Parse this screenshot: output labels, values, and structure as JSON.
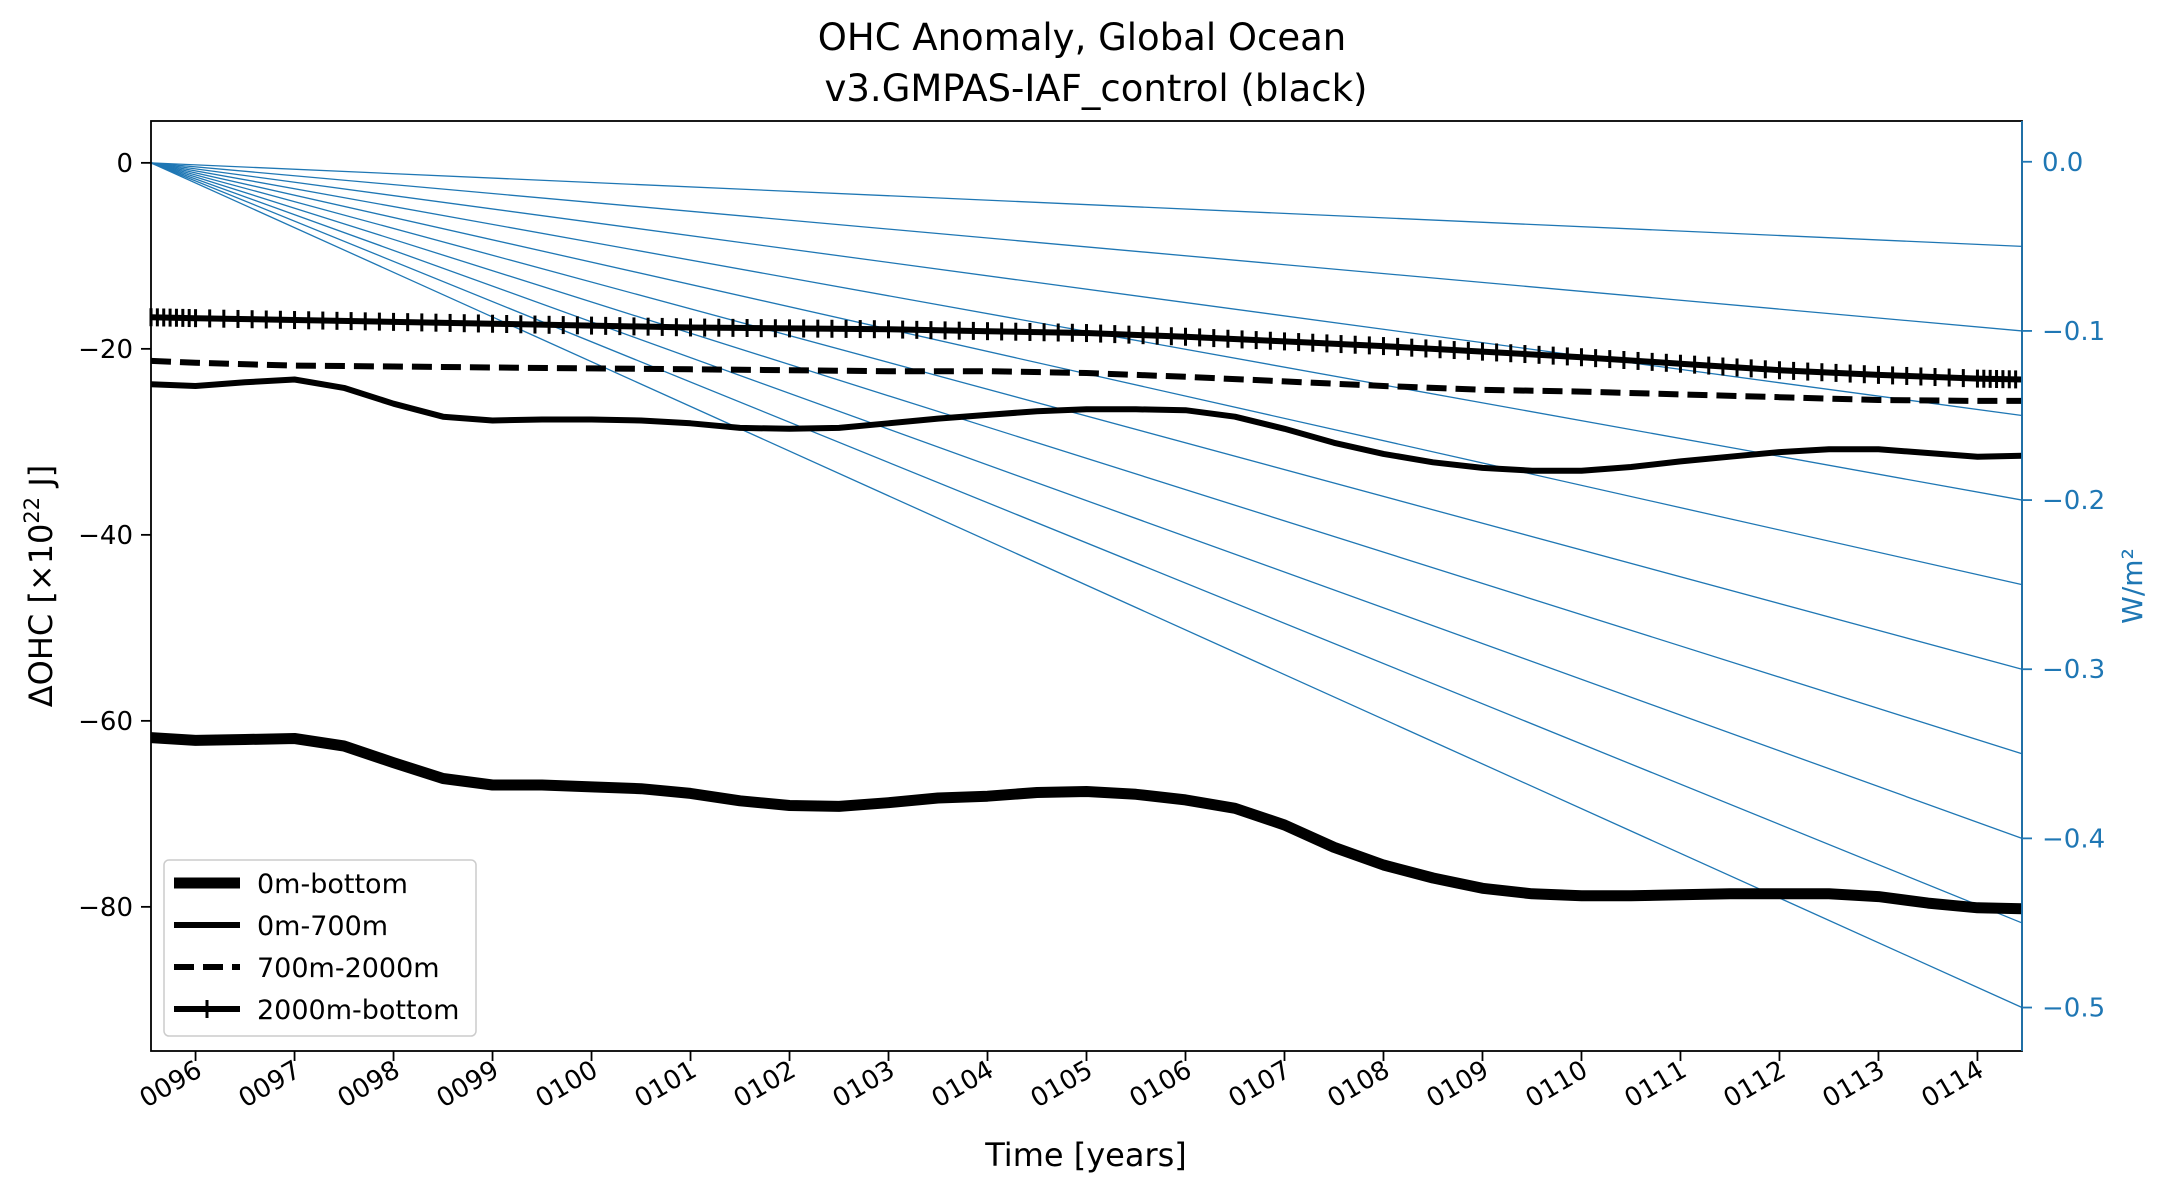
{
  "chart_data": {
    "type": "line",
    "title_line1": "OHC Anomaly, Global Ocean",
    "title_line2": "v3.GMPAS-IAF_control (black)",
    "xlabel": "Time [years]",
    "ylabel_main": "ΔOHC [×10",
    "ylabel_exp": "22",
    "ylabel_unit": " J]",
    "y2label": "W/m²",
    "xlim": [
      95.55,
      114.45
    ],
    "ylim": [
      -95.5,
      4.5
    ],
    "y2lim": [
      -0.5257,
      0.0241
    ],
    "xticks": [
      {
        "value": 96,
        "label": "0096"
      },
      {
        "value": 97,
        "label": "0097"
      },
      {
        "value": 98,
        "label": "0098"
      },
      {
        "value": 99,
        "label": "0099"
      },
      {
        "value": 100,
        "label": "0100"
      },
      {
        "value": 101,
        "label": "0101"
      },
      {
        "value": 102,
        "label": "0102"
      },
      {
        "value": 103,
        "label": "0103"
      },
      {
        "value": 104,
        "label": "0104"
      },
      {
        "value": 105,
        "label": "0105"
      },
      {
        "value": 106,
        "label": "0106"
      },
      {
        "value": 107,
        "label": "0107"
      },
      {
        "value": 108,
        "label": "0108"
      },
      {
        "value": 109,
        "label": "0109"
      },
      {
        "value": 110,
        "label": "0110"
      },
      {
        "value": 111,
        "label": "0111"
      },
      {
        "value": 112,
        "label": "0112"
      },
      {
        "value": 113,
        "label": "0113"
      },
      {
        "value": 114,
        "label": "0114"
      }
    ],
    "yticks": [
      {
        "value": 0,
        "label": "0"
      },
      {
        "value": -20,
        "label": "−20"
      },
      {
        "value": -40,
        "label": "−40"
      },
      {
        "value": -60,
        "label": "−60"
      },
      {
        "value": -80,
        "label": "−80"
      }
    ],
    "y2ticks": [
      {
        "value": 0.0,
        "label": "0.0"
      },
      {
        "value": -0.1,
        "label": "−0.1"
      },
      {
        "value": -0.2,
        "label": "−0.2"
      },
      {
        "value": -0.3,
        "label": "−0.3"
      },
      {
        "value": -0.4,
        "label": "−0.4"
      },
      {
        "value": -0.5,
        "label": "−0.5"
      }
    ],
    "reference_lines": {
      "color": "#1f77b4",
      "origin": [
        95.55,
        0
      ],
      "end_x": 114.45,
      "end_values_wm2": [
        -0.05,
        -0.1,
        -0.15,
        -0.2,
        -0.25,
        -0.3,
        -0.35,
        -0.4,
        -0.45,
        -0.5
      ]
    },
    "series": [
      {
        "name": "0m-bottom",
        "style": "thick",
        "x": [
          95.55,
          96,
          96.5,
          97,
          97.5,
          98,
          98.5,
          99,
          99.5,
          100,
          100.5,
          101,
          101.5,
          102,
          102.5,
          103,
          103.5,
          104,
          104.5,
          105,
          105.5,
          106,
          106.5,
          107,
          107.5,
          108,
          108.5,
          109,
          109.5,
          110,
          110.5,
          111,
          111.5,
          112,
          112.5,
          113,
          113.5,
          114,
          114.45
        ],
        "y": [
          -61.8,
          -62.1,
          -62.0,
          -61.9,
          -62.7,
          -64.5,
          -66.2,
          -66.9,
          -66.9,
          -67.1,
          -67.3,
          -67.8,
          -68.6,
          -69.1,
          -69.2,
          -68.8,
          -68.3,
          -68.1,
          -67.7,
          -67.6,
          -67.9,
          -68.5,
          -69.4,
          -71.2,
          -73.6,
          -75.5,
          -76.9,
          -78.0,
          -78.6,
          -78.8,
          -78.8,
          -78.7,
          -78.6,
          -78.6,
          -78.6,
          -78.9,
          -79.6,
          -80.1,
          -80.2
        ]
      },
      {
        "name": "0m-700m",
        "style": "solid",
        "x": [
          95.55,
          96,
          96.5,
          97,
          97.5,
          98,
          98.5,
          99,
          99.5,
          100,
          100.5,
          101,
          101.5,
          102,
          102.5,
          103,
          103.5,
          104,
          104.5,
          105,
          105.5,
          106,
          106.5,
          107,
          107.5,
          108,
          108.5,
          109,
          109.5,
          110,
          110.5,
          111,
          111.5,
          112,
          112.5,
          113,
          113.5,
          114,
          114.45
        ],
        "y": [
          -23.8,
          -24.0,
          -23.6,
          -23.3,
          -24.2,
          -25.9,
          -27.3,
          -27.7,
          -27.6,
          -27.6,
          -27.7,
          -28.0,
          -28.5,
          -28.6,
          -28.5,
          -28.0,
          -27.5,
          -27.1,
          -26.7,
          -26.5,
          -26.5,
          -26.6,
          -27.3,
          -28.6,
          -30.1,
          -31.3,
          -32.2,
          -32.8,
          -33.1,
          -33.1,
          -32.7,
          -32.1,
          -31.6,
          -31.1,
          -30.8,
          -30.8,
          -31.2,
          -31.6,
          -31.5
        ]
      },
      {
        "name": "700m-2000m",
        "style": "dashed",
        "x": [
          95.55,
          96,
          97,
          98,
          99,
          100,
          101,
          102,
          103,
          104,
          105,
          106,
          107,
          108,
          109,
          110,
          111,
          112,
          113,
          114,
          114.45
        ],
        "y": [
          -21.3,
          -21.5,
          -21.8,
          -21.9,
          -22.0,
          -22.1,
          -22.2,
          -22.3,
          -22.4,
          -22.4,
          -22.6,
          -23.0,
          -23.5,
          -24.0,
          -24.4,
          -24.6,
          -24.9,
          -25.2,
          -25.5,
          -25.6,
          -25.6
        ]
      },
      {
        "name": "2000m-bottom",
        "style": "plus",
        "x": [
          95.55,
          96,
          97,
          98,
          99,
          100,
          101,
          102,
          103,
          104,
          105,
          106,
          107,
          108,
          109,
          110,
          111,
          112,
          113,
          114,
          114.45
        ],
        "y": [
          -16.6,
          -16.7,
          -16.9,
          -17.1,
          -17.3,
          -17.5,
          -17.7,
          -17.8,
          -17.9,
          -18.1,
          -18.3,
          -18.7,
          -19.2,
          -19.7,
          -20.3,
          -20.9,
          -21.6,
          -22.3,
          -22.8,
          -23.2,
          -23.3
        ]
      }
    ],
    "legend_location": "lower-left",
    "colors": {
      "series": "#000000",
      "axis2": "#1f77b4",
      "frame": "#000000"
    }
  }
}
